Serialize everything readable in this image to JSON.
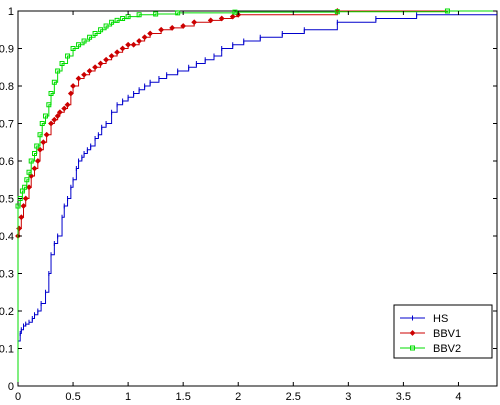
{
  "chart_data": {
    "type": "line",
    "title": "",
    "xlabel": "",
    "ylabel": "",
    "xlim": [
      0,
      4.35
    ],
    "ylim": [
      0,
      1
    ],
    "grid": false,
    "legend_position": "bottom-right",
    "x_ticks": [
      "0",
      "0.5",
      "1",
      "1.5",
      "2",
      "2.5",
      "3",
      "3.5",
      "4"
    ],
    "y_ticks": [
      "0",
      "0.1",
      "0.2",
      "0.3",
      "0.4",
      "0.5",
      "0.6",
      "0.7",
      "0.8",
      "0.9",
      "1"
    ],
    "series": [
      {
        "name": "HS",
        "color": "#0000cc",
        "marker": "point",
        "x": [
          0,
          0.02,
          0.03,
          0.05,
          0.07,
          0.1,
          0.13,
          0.15,
          0.18,
          0.21,
          0.25,
          0.28,
          0.3,
          0.33,
          0.36,
          0.4,
          0.42,
          0.45,
          0.48,
          0.5,
          0.53,
          0.55,
          0.58,
          0.6,
          0.63,
          0.66,
          0.7,
          0.73,
          0.76,
          0.8,
          0.85,
          0.9,
          0.95,
          1.0,
          1.05,
          1.1,
          1.15,
          1.2,
          1.28,
          1.35,
          1.45,
          1.55,
          1.62,
          1.7,
          1.78,
          1.85,
          1.95,
          2.05,
          2.2,
          2.4,
          2.6,
          2.9,
          3.25,
          3.62
        ],
        "y": [
          0.12,
          0.14,
          0.15,
          0.16,
          0.165,
          0.17,
          0.18,
          0.19,
          0.2,
          0.22,
          0.25,
          0.3,
          0.35,
          0.38,
          0.4,
          0.45,
          0.48,
          0.5,
          0.53,
          0.55,
          0.58,
          0.6,
          0.61,
          0.62,
          0.63,
          0.64,
          0.66,
          0.67,
          0.69,
          0.7,
          0.73,
          0.75,
          0.76,
          0.77,
          0.78,
          0.79,
          0.8,
          0.81,
          0.82,
          0.83,
          0.84,
          0.85,
          0.86,
          0.87,
          0.88,
          0.9,
          0.91,
          0.92,
          0.93,
          0.94,
          0.95,
          0.97,
          0.98,
          0.99
        ]
      },
      {
        "name": "BBV1",
        "color": "#cc0000",
        "marker": "diamond",
        "x": [
          0,
          0.01,
          0.03,
          0.05,
          0.07,
          0.1,
          0.12,
          0.15,
          0.18,
          0.2,
          0.23,
          0.26,
          0.3,
          0.33,
          0.36,
          0.38,
          0.42,
          0.45,
          0.48,
          0.5,
          0.55,
          0.6,
          0.65,
          0.7,
          0.75,
          0.8,
          0.85,
          0.9,
          0.95,
          1.0,
          1.05,
          1.1,
          1.15,
          1.2,
          1.3,
          1.4,
          1.5,
          1.6,
          1.75,
          1.85,
          1.95,
          2.0,
          2.9
        ],
        "y": [
          0.4,
          0.42,
          0.45,
          0.48,
          0.5,
          0.53,
          0.56,
          0.58,
          0.6,
          0.63,
          0.65,
          0.67,
          0.7,
          0.71,
          0.72,
          0.73,
          0.74,
          0.75,
          0.78,
          0.8,
          0.82,
          0.83,
          0.84,
          0.85,
          0.86,
          0.87,
          0.88,
          0.89,
          0.9,
          0.91,
          0.91,
          0.92,
          0.93,
          0.94,
          0.95,
          0.955,
          0.96,
          0.97,
          0.975,
          0.98,
          0.985,
          0.99,
          1.0
        ]
      },
      {
        "name": "BBV2",
        "color": "#00dd00",
        "marker": "square",
        "x": [
          0,
          0.02,
          0.04,
          0.06,
          0.08,
          0.1,
          0.12,
          0.15,
          0.17,
          0.2,
          0.22,
          0.25,
          0.28,
          0.3,
          0.33,
          0.36,
          0.4,
          0.45,
          0.5,
          0.55,
          0.6,
          0.65,
          0.7,
          0.75,
          0.8,
          0.85,
          0.9,
          0.95,
          1.0,
          1.1,
          1.25,
          1.45,
          1.97,
          2.9,
          3.9
        ],
        "y": [
          0.48,
          0.5,
          0.52,
          0.53,
          0.55,
          0.57,
          0.6,
          0.62,
          0.64,
          0.67,
          0.7,
          0.72,
          0.75,
          0.78,
          0.81,
          0.84,
          0.86,
          0.88,
          0.9,
          0.91,
          0.92,
          0.93,
          0.94,
          0.95,
          0.96,
          0.97,
          0.975,
          0.98,
          0.985,
          0.99,
          0.992,
          0.995,
          0.997,
          0.998,
          1.0
        ]
      }
    ]
  }
}
